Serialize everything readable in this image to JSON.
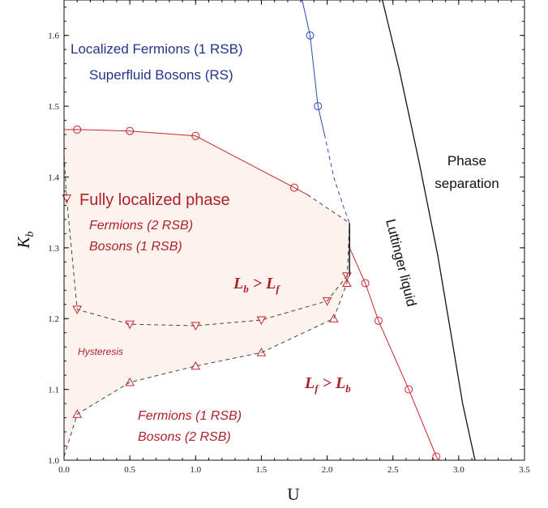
{
  "chart_data": {
    "type": "scatter",
    "xlabel": "U",
    "ylabel": "K",
    "ylabel_sub": "b",
    "xlim": [
      0.0,
      3.5
    ],
    "ylim": [
      1.0,
      1.65
    ],
    "xticks": [
      "0.0",
      "0.5",
      "1.0",
      "1.5",
      "2.0",
      "2.5",
      "3.0",
      "3.5"
    ],
    "yticks": [
      "1.0",
      "1.1",
      "1.2",
      "1.3",
      "1.4",
      "1.5",
      "1.6"
    ],
    "grid": false,
    "series": [
      {
        "id": "fermion_deloc",
        "color": "#2a4db0",
        "marker": "circle",
        "points": [
          [
            1.87,
            1.6
          ],
          [
            1.93,
            1.5
          ]
        ],
        "line_solid": [
          [
            1.81,
            1.65
          ],
          [
            1.87,
            1.6
          ],
          [
            1.93,
            1.5
          ],
          [
            1.98,
            1.46
          ]
        ],
        "line_dashed": [
          [
            1.98,
            1.46
          ],
          [
            2.05,
            1.4
          ],
          [
            2.12,
            1.36
          ],
          [
            2.17,
            1.335
          ]
        ]
      },
      {
        "id": "boson_upper",
        "color": "#c8252f",
        "marker": "circle",
        "points": [
          [
            0.1,
            1.467
          ],
          [
            0.5,
            1.465
          ],
          [
            1.0,
            1.458
          ],
          [
            1.75,
            1.385
          ]
        ],
        "line_solid": [
          [
            0.0,
            1.467
          ],
          [
            0.1,
            1.467
          ],
          [
            0.5,
            1.465
          ],
          [
            1.0,
            1.458
          ],
          [
            1.75,
            1.385
          ],
          [
            1.85,
            1.375
          ]
        ],
        "line_dashed": [
          [
            1.85,
            1.375
          ],
          [
            2.17,
            1.335
          ]
        ]
      },
      {
        "id": "boson_right",
        "color": "#c8252f",
        "marker": "circle",
        "points": [
          [
            2.29,
            1.25
          ],
          [
            2.39,
            1.197
          ],
          [
            2.62,
            1.1
          ],
          [
            2.83,
            1.005
          ]
        ],
        "line_solid": [
          [
            2.17,
            1.3
          ],
          [
            2.29,
            1.25
          ],
          [
            2.39,
            1.197
          ],
          [
            2.62,
            1.1
          ],
          [
            2.83,
            1.005
          ],
          [
            2.86,
            0.995
          ]
        ]
      },
      {
        "id": "hysteresis_upper",
        "color": "#c8252f",
        "marker": "triangle-down",
        "points": [
          [
            0.02,
            1.37
          ],
          [
            0.1,
            1.213
          ],
          [
            0.5,
            1.192
          ],
          [
            1.0,
            1.19
          ],
          [
            1.5,
            1.198
          ],
          [
            2.0,
            1.225
          ],
          [
            2.15,
            1.26
          ]
        ],
        "line_dashed": [
          [
            0.0,
            1.43
          ],
          [
            0.02,
            1.37
          ],
          [
            0.1,
            1.213
          ],
          [
            0.5,
            1.192
          ],
          [
            1.0,
            1.19
          ],
          [
            1.5,
            1.198
          ],
          [
            2.0,
            1.225
          ],
          [
            2.15,
            1.26
          ]
        ]
      },
      {
        "id": "hysteresis_lower",
        "color": "#c8252f",
        "marker": "triangle-up",
        "points": [
          [
            0.1,
            1.065
          ],
          [
            0.5,
            1.11
          ],
          [
            1.0,
            1.133
          ],
          [
            1.5,
            1.152
          ],
          [
            2.05,
            1.2
          ],
          [
            2.15,
            1.25
          ]
        ],
        "line_dashed": [
          [
            0.0,
            1.005
          ],
          [
            0.1,
            1.065
          ],
          [
            0.5,
            1.11
          ],
          [
            1.0,
            1.133
          ],
          [
            1.5,
            1.152
          ],
          [
            2.05,
            1.2
          ],
          [
            2.15,
            1.25
          ],
          [
            2.17,
            1.335
          ]
        ]
      },
      {
        "id": "phase_separation",
        "color": "#111111",
        "marker": "none",
        "line_solid": [
          [
            2.42,
            1.65
          ],
          [
            2.55,
            1.55
          ],
          [
            2.7,
            1.42
          ],
          [
            2.84,
            1.29
          ],
          [
            2.94,
            1.18
          ],
          [
            3.03,
            1.08
          ],
          [
            3.1,
            1.02
          ],
          [
            3.13,
            0.995
          ]
        ]
      }
    ],
    "vertical_segment": {
      "x": 2.17,
      "y": [
        1.26,
        1.335
      ],
      "color": "#111111"
    },
    "shaded_region": {
      "color": "#fdf3ee",
      "polygon": [
        [
          0.0,
          1.467
        ],
        [
          0.5,
          1.465
        ],
        [
          1.0,
          1.458
        ],
        [
          1.75,
          1.385
        ],
        [
          2.17,
          1.335
        ],
        [
          2.15,
          1.25
        ],
        [
          2.05,
          1.2
        ],
        [
          1.5,
          1.152
        ],
        [
          1.0,
          1.133
        ],
        [
          0.5,
          1.11
        ],
        [
          0.1,
          1.065
        ],
        [
          0.0,
          1.005
        ]
      ]
    },
    "annotations": {
      "localized_fermions": "Localized Fermions (1 RSB)",
      "superfluid_bosons": "Superfluid Bosons (RS)",
      "phase_separation_1": "Phase",
      "phase_separation_2": "separation",
      "fully_localized": "Fully localized phase",
      "fermions_2rsb": "Fermions (2 RSB)",
      "bosons_1rsb": "Bosons (1 RSB)",
      "lb_gt_lf": "L",
      "lb_sub_b": "b",
      "lb_op": " > L",
      "lb_sub_f": "f",
      "lf_gt_lb": "L",
      "lf_sub_f": "f",
      "lf_op": " > L",
      "lf_sub_b": "b",
      "hysteresis": "Hysteresis",
      "fermions_1rsb": "Fermions (1 RSB)",
      "bosons_2rsb": "Bosons (2 RSB)",
      "luttinger": "Luttinger liquid"
    },
    "annotation_colors": {
      "blue_text": "#24348a",
      "red_text": "#b0202a",
      "black_text": "#111111"
    }
  }
}
